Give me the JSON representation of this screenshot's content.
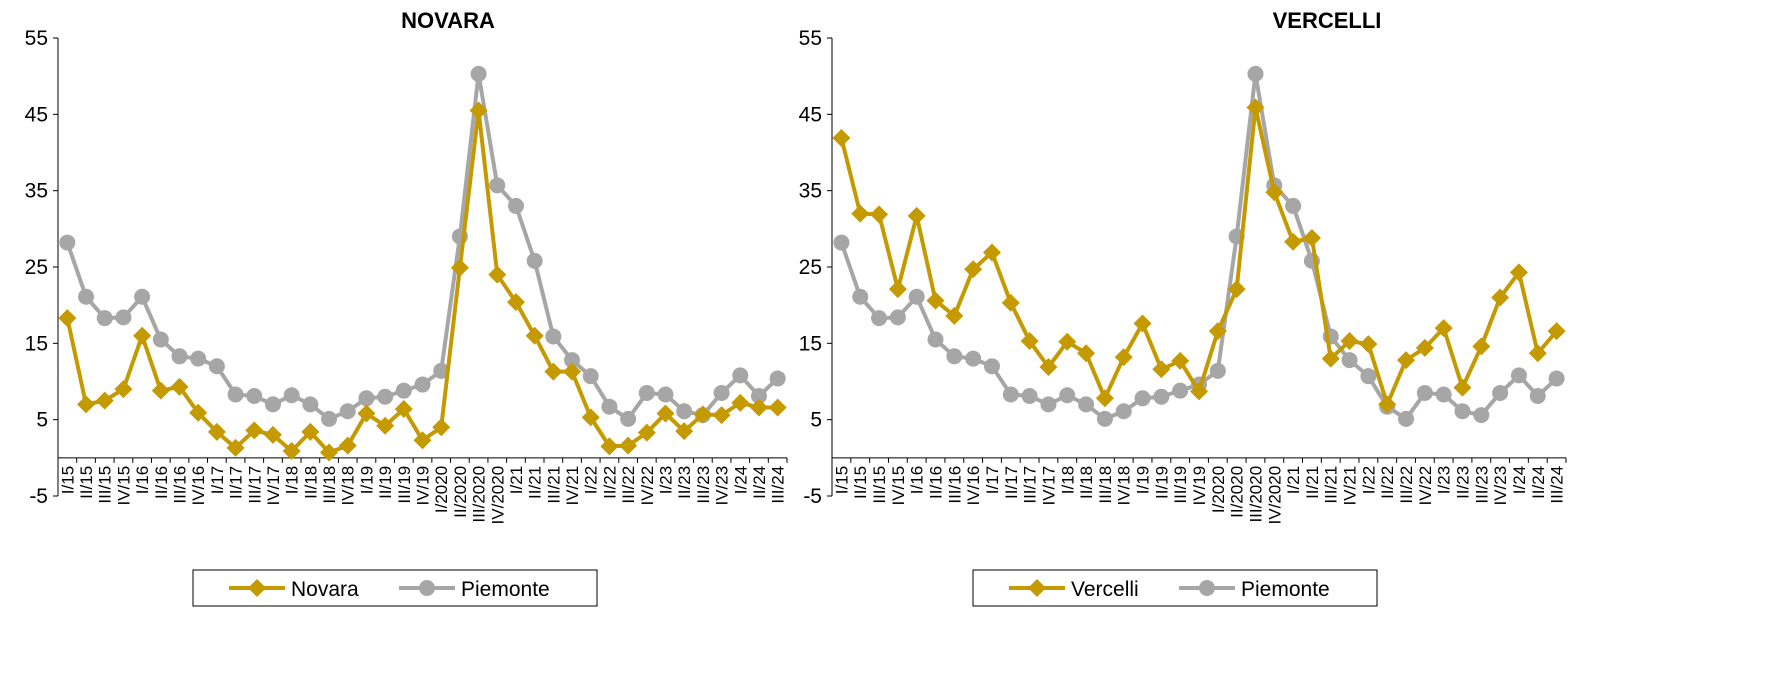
{
  "colors": {
    "local": "#C49A00",
    "piemonte": "#A6A6A6"
  },
  "chart_data": [
    {
      "type": "line",
      "title": "NOVARA",
      "ylim": [
        -5,
        55
      ],
      "yticks": [
        -5,
        5,
        15,
        25,
        35,
        45,
        55
      ],
      "grid": false,
      "legend_position": "bottom",
      "categories": [
        "I/15",
        "II/15",
        "III/15",
        "IV/15",
        "I/16",
        "II/16",
        "III/16",
        "IV/16",
        "I/17",
        "II/17",
        "III/17",
        "IV/17",
        "I/18",
        "II/18",
        "III/18",
        "IV/18",
        "I/19",
        "II/19",
        "III/19",
        "IV/19",
        "I/2020",
        "II/2020",
        "III/2020",
        "IV/2020",
        "I/21",
        "II/21",
        "III/21",
        "IV/21",
        "I/22",
        "II/22",
        "III/22",
        "IV/22",
        "I/23",
        "II/23",
        "III/23",
        "IV/23",
        "I/24",
        "II/24",
        "III/24"
      ],
      "series": [
        {
          "name": "Novara",
          "marker": "diamond",
          "color": "#C49A00",
          "values": [
            18.3,
            7.0,
            7.5,
            9.0,
            16.0,
            8.8,
            9.3,
            5.9,
            3.4,
            1.3,
            3.6,
            3.0,
            0.9,
            3.4,
            0.7,
            1.6,
            5.8,
            4.2,
            6.4,
            2.3,
            4.0,
            24.9,
            45.5,
            24.0,
            20.4,
            16.0,
            11.3,
            11.3,
            5.3,
            1.5,
            1.6,
            3.3,
            5.8,
            3.5,
            5.7,
            5.6,
            7.2,
            6.6,
            6.6
          ]
        },
        {
          "name": "Piemonte",
          "marker": "circle",
          "color": "#A6A6A6",
          "values": [
            28.2,
            21.1,
            18.3,
            18.4,
            21.1,
            15.5,
            13.3,
            13.0,
            12.0,
            8.3,
            8.1,
            7.0,
            8.2,
            7.0,
            5.1,
            6.1,
            7.8,
            8.0,
            8.8,
            9.6,
            11.4,
            29.0,
            50.3,
            35.7,
            33.0,
            25.8,
            15.9,
            12.8,
            10.7,
            6.7,
            5.1,
            8.5,
            8.3,
            6.1,
            5.6,
            8.5,
            10.8,
            8.1,
            10.4
          ]
        }
      ]
    },
    {
      "type": "line",
      "title": "VERCELLI",
      "ylim": [
        -5,
        55
      ],
      "yticks": [
        -5,
        5,
        15,
        25,
        35,
        45,
        55
      ],
      "grid": false,
      "legend_position": "bottom",
      "categories": [
        "I/15",
        "II/15",
        "III/15",
        "IV/15",
        "I/16",
        "II/16",
        "III/16",
        "IV/16",
        "I/17",
        "II/17",
        "III/17",
        "IV/17",
        "I/18",
        "II/18",
        "III/18",
        "IV/18",
        "I/19",
        "II/19",
        "III/19",
        "IV/19",
        "I/2020",
        "II/2020",
        "III/2020",
        "IV/2020",
        "I/21",
        "II/21",
        "III/21",
        "IV/21",
        "I/22",
        "II/22",
        "III/22",
        "IV/22",
        "I/23",
        "II/23",
        "III/23",
        "IV/23",
        "I/24",
        "II/24",
        "III/24"
      ],
      "series": [
        {
          "name": "Vercelli",
          "marker": "diamond",
          "color": "#C49A00",
          "values": [
            41.9,
            32.0,
            31.9,
            22.1,
            31.7,
            20.6,
            18.6,
            24.7,
            26.9,
            20.3,
            15.3,
            11.9,
            15.2,
            13.7,
            7.8,
            13.2,
            17.6,
            11.6,
            12.7,
            8.7,
            16.6,
            22.1,
            45.9,
            34.8,
            28.3,
            28.8,
            13.0,
            15.3,
            14.9,
            7.0,
            12.8,
            14.4,
            17.0,
            9.2,
            14.6,
            21.0,
            24.3,
            13.7,
            16.6
          ]
        },
        {
          "name": "Piemonte",
          "marker": "circle",
          "color": "#A6A6A6",
          "values": [
            28.2,
            21.1,
            18.3,
            18.4,
            21.1,
            15.5,
            13.3,
            13.0,
            12.0,
            8.3,
            8.1,
            7.0,
            8.2,
            7.0,
            5.1,
            6.1,
            7.8,
            8.0,
            8.8,
            9.6,
            11.4,
            29.0,
            50.3,
            35.7,
            33.0,
            25.8,
            15.9,
            12.8,
            10.7,
            6.7,
            5.1,
            8.5,
            8.3,
            6.1,
            5.6,
            8.5,
            10.8,
            8.1,
            10.4
          ]
        }
      ]
    }
  ]
}
